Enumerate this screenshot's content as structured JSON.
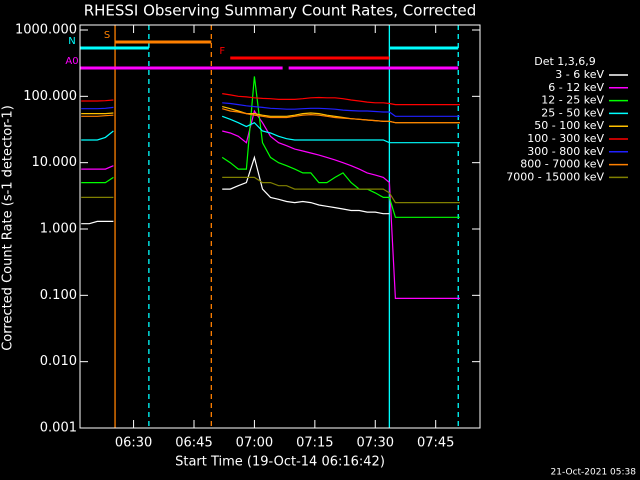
{
  "chart_data": {
    "type": "line",
    "title": "RHESSI Observing Summary Count Rates, Corrected",
    "x_label": "Start Time (19-Oct-14 06:16:42)",
    "y_label": "Corrected Count Rate (s-1 detector-1)",
    "legend_title": "Det 1,3,6,9",
    "footer": "21-Oct-2021 05:38",
    "log_y": true,
    "legend": "right",
    "xlim": [
      376.7,
      476
    ],
    "ylim": [
      0.001,
      1000
    ],
    "xticks": [
      {
        "value": 390,
        "label": "06:30"
      },
      {
        "value": 405,
        "label": "06:45"
      },
      {
        "value": 420,
        "label": "07:00"
      },
      {
        "value": 435,
        "label": "07:15"
      },
      {
        "value": 450,
        "label": "07:30"
      },
      {
        "value": 465,
        "label": "07:45"
      }
    ],
    "yticks": [
      {
        "value": 0.001,
        "label": "0.001"
      },
      {
        "value": 0.01,
        "label": "0.010"
      },
      {
        "value": 0.1,
        "label": "0.100"
      },
      {
        "value": 1,
        "label": "1.000"
      },
      {
        "value": 10,
        "label": "10.000"
      },
      {
        "value": 100,
        "label": "100.000"
      },
      {
        "value": 1000,
        "label": "1000.000"
      }
    ],
    "x": [
      377,
      379,
      381,
      383,
      385,
      386,
      412,
      414,
      416,
      418,
      420,
      422,
      424,
      426,
      428,
      430,
      432,
      434,
      436,
      438,
      440,
      442,
      444,
      446,
      448,
      450,
      452,
      453.5,
      455,
      457,
      459,
      461,
      463,
      465,
      467,
      469,
      471
    ],
    "series": [
      {
        "name": "3 - 6 keV",
        "color": "#ffffff",
        "values": [
          1.2,
          1.2,
          1.3,
          1.3,
          1.3,
          null,
          4,
          4,
          4.5,
          5,
          12,
          4,
          3,
          2.8,
          2.6,
          2.5,
          2.6,
          2.5,
          2.3,
          2.2,
          2.1,
          2.0,
          1.9,
          1.9,
          1.8,
          1.8,
          1.7,
          1.7,
          null,
          null,
          null,
          null,
          null,
          null,
          null,
          null,
          null
        ]
      },
      {
        "name": "6 - 12 keV",
        "color": "#ff00ff",
        "values": [
          8,
          8,
          8,
          8,
          9,
          null,
          30,
          28,
          25,
          20,
          60,
          40,
          25,
          20,
          18,
          16,
          15,
          14,
          13,
          12,
          11,
          10,
          9,
          8,
          7,
          6.5,
          6,
          5,
          0.09,
          0.09,
          0.09,
          0.09,
          0.09,
          0.09,
          0.09,
          0.09,
          0.09
        ]
      },
      {
        "name": "12 - 25 keV",
        "color": "#00ff00",
        "values": [
          5,
          5,
          5,
          5,
          6,
          null,
          12,
          10,
          8,
          8,
          200,
          20,
          12,
          10,
          9,
          8,
          7,
          7,
          5,
          5,
          6,
          7,
          5,
          4,
          4,
          3.5,
          3,
          3,
          1.5,
          1.5,
          1.5,
          1.5,
          1.5,
          1.5,
          1.5,
          1.5,
          1.5
        ]
      },
      {
        "name": "25 - 50 keV",
        "color": "#00ffff",
        "values": [
          22,
          22,
          22,
          24,
          30,
          null,
          50,
          45,
          40,
          35,
          40,
          30,
          28,
          25,
          23,
          22,
          22,
          22,
          22,
          22,
          22,
          22,
          22,
          22,
          22,
          22,
          22,
          20,
          20,
          20,
          20,
          20,
          20,
          20,
          20,
          20,
          20
        ]
      },
      {
        "name": "50 - 100 keV",
        "color": "#ffc000",
        "values": [
          55,
          55,
          55,
          55,
          56,
          null,
          70,
          65,
          60,
          55,
          55,
          52,
          50,
          50,
          50,
          52,
          55,
          56,
          55,
          52,
          50,
          48,
          46,
          45,
          44,
          43,
          42,
          42,
          40,
          40,
          40,
          40,
          40,
          40,
          40,
          40,
          40
        ]
      },
      {
        "name": "100 - 300 keV",
        "color": "#ff0000",
        "values": [
          85,
          85,
          85,
          86,
          88,
          null,
          110,
          105,
          100,
          98,
          95,
          93,
          92,
          90,
          90,
          90,
          92,
          95,
          96,
          95,
          95,
          92,
          88,
          85,
          82,
          80,
          80,
          78,
          75,
          75,
          75,
          75,
          75,
          75,
          75,
          75,
          75
        ]
      },
      {
        "name": "300 - 800 keV",
        "color": "#2020ff",
        "values": [
          65,
          65,
          65,
          66,
          68,
          null,
          80,
          78,
          75,
          72,
          70,
          68,
          66,
          65,
          64,
          64,
          65,
          66,
          66,
          65,
          64,
          62,
          61,
          60,
          60,
          59,
          58,
          58,
          50,
          50,
          50,
          50,
          50,
          50,
          50,
          50,
          50
        ]
      },
      {
        "name": "800 - 7000 keV",
        "color": "#ff8000",
        "values": [
          50,
          50,
          50,
          51,
          52,
          null,
          65,
          60,
          58,
          55,
          52,
          50,
          48,
          48,
          48,
          50,
          52,
          53,
          52,
          50,
          48,
          47,
          46,
          45,
          44,
          43,
          42,
          42,
          40,
          40,
          40,
          40,
          40,
          40,
          40,
          40,
          40
        ]
      },
      {
        "name": "7000 - 15000 keV",
        "color": "#808000",
        "values": [
          3,
          3,
          3,
          3,
          3,
          null,
          6,
          6,
          6,
          6,
          6,
          5,
          5,
          4.5,
          4.5,
          4,
          4,
          4,
          4,
          4,
          4,
          4,
          4,
          4,
          4,
          4,
          4,
          3.5,
          2.5,
          2.5,
          2.5,
          2.5,
          2.5,
          2.5,
          2.5,
          2.5,
          2.5
        ]
      }
    ],
    "flags": [
      {
        "label": "S",
        "color": "#ff8000",
        "segments": [
          [
            385.4,
            409.3
          ]
        ]
      },
      {
        "label": "N",
        "color": "#00ffff",
        "segments": [
          [
            376.7,
            393.8
          ],
          [
            453.5,
            470.6
          ]
        ]
      },
      {
        "label": "F",
        "color": "#ff0000",
        "segments": [
          [
            414,
            453.5
          ]
        ]
      },
      {
        "label": "A0",
        "color": "#ff00ff",
        "segments": [
          [
            376.7,
            427
          ],
          [
            428.5,
            470.6
          ]
        ]
      }
    ],
    "vlines": [
      {
        "x": 385.4,
        "color": "#ff8000",
        "dash": false
      },
      {
        "x": 393.8,
        "color": "#00ffff",
        "dash": true
      },
      {
        "x": 409.3,
        "color": "#ff8000",
        "dash": true
      },
      {
        "x": 453.5,
        "color": "#00ffff",
        "dash": false
      },
      {
        "x": 470.6,
        "color": "#00ffff",
        "dash": true
      }
    ]
  }
}
